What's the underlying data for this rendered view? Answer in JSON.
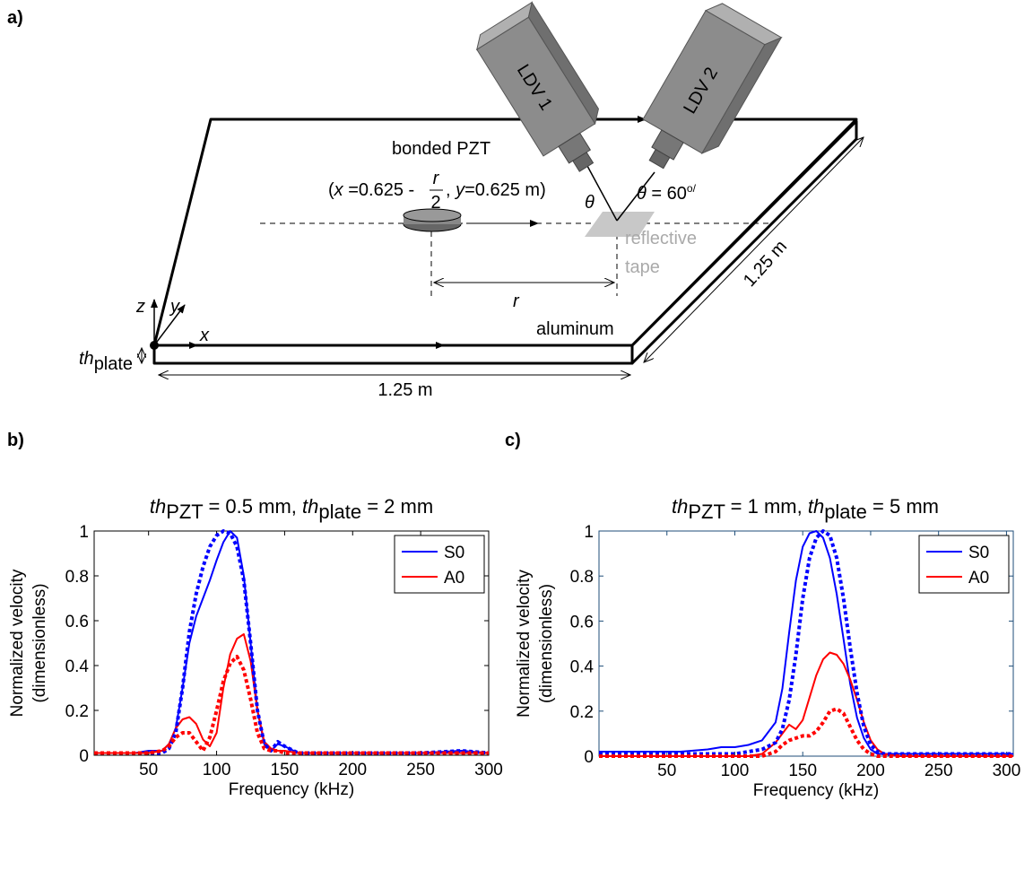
{
  "diagram": {
    "label": "a)",
    "ldv1": "LDV 1",
    "ldv2": "LDV 2",
    "pzt": "bonded PZT",
    "coord": [
      "(",
      "x",
      " =0.625 -",
      "r",
      "2",
      ", ",
      "y",
      "=0.625 m)"
    ],
    "theta_left": "θ",
    "theta_right": [
      "θ",
      " = 60",
      "o/"
    ],
    "tape": [
      "reflective",
      "tape"
    ],
    "width": "1.25 m",
    "depth": "1.25 m",
    "r": "r",
    "material": "aluminum",
    "axes": [
      "z",
      "y",
      "x"
    ],
    "thickness": [
      "th",
      "plate"
    ]
  },
  "chart_data": [
    {
      "type": "line",
      "panel_label": "b)",
      "title": [
        "th",
        "PZT",
        " = 0.5 mm, ",
        "th",
        "plate",
        " = 2 mm"
      ],
      "title_styles": [
        "italic",
        "sub",
        "normal",
        "italic",
        "sub",
        "normal"
      ],
      "xlabel": "Frequency (kHz)",
      "ylabel": [
        "Normalized velocity",
        "(dimensionless)"
      ],
      "x": [
        10,
        20,
        30,
        40,
        50,
        60,
        65,
        70,
        75,
        80,
        85,
        90,
        95,
        100,
        105,
        110,
        115,
        120,
        125,
        130,
        135,
        140,
        145,
        150,
        160,
        180,
        200,
        250,
        280,
        300
      ],
      "series": [
        {
          "name": "S0",
          "color": "#0000ff",
          "dash": false,
          "values": [
            0.01,
            0.01,
            0.01,
            0.01,
            0.02,
            0.02,
            0.05,
            0.12,
            0.3,
            0.5,
            0.62,
            0.7,
            0.78,
            0.87,
            0.95,
            1.0,
            0.97,
            0.8,
            0.5,
            0.2,
            0.05,
            0.02,
            0.05,
            0.04,
            0.01,
            0.01,
            0.01,
            0.01,
            0.02,
            0.01
          ]
        },
        {
          "name": "A0",
          "color": "#ff0000",
          "dash": false,
          "values": [
            0.01,
            0.01,
            0.01,
            0.01,
            0.01,
            0.02,
            0.05,
            0.12,
            0.16,
            0.17,
            0.14,
            0.07,
            0.04,
            0.1,
            0.3,
            0.45,
            0.52,
            0.54,
            0.42,
            0.2,
            0.06,
            0.03,
            0.02,
            0.02,
            0.01,
            0.01,
            0.01,
            0.01,
            0.01,
            0.01
          ]
        },
        {
          "color": "#0000ff",
          "dash": true,
          "values": [
            0.01,
            0.01,
            0.01,
            0.01,
            0.01,
            0.01,
            0.03,
            0.1,
            0.3,
            0.55,
            0.72,
            0.84,
            0.93,
            0.98,
            1.0,
            0.99,
            0.93,
            0.78,
            0.5,
            0.2,
            0.05,
            0.02,
            0.06,
            0.04,
            0.01,
            0.01,
            0.01,
            0.01,
            0.02,
            0.01
          ]
        },
        {
          "color": "#ff0000",
          "dash": true,
          "values": [
            0.01,
            0.01,
            0.01,
            0.01,
            0.01,
            0.02,
            0.04,
            0.08,
            0.1,
            0.1,
            0.06,
            0.02,
            0.08,
            0.2,
            0.33,
            0.41,
            0.44,
            0.38,
            0.25,
            0.1,
            0.03,
            0.02,
            0.02,
            0.01,
            0.01,
            0.01,
            0.01,
            0.01,
            0.01,
            0.01
          ]
        }
      ],
      "xlim": [
        10,
        300
      ],
      "xticks": [
        50,
        100,
        150,
        200,
        250,
        300
      ],
      "ylim": [
        0,
        1
      ],
      "yticks": [
        0,
        0.2,
        0.4,
        0.6,
        0.8,
        1
      ],
      "legend": "upper right",
      "axes_color": "#000000"
    },
    {
      "type": "line",
      "panel_label": "c)",
      "title": [
        "th",
        "PZT",
        " = 1 mm, ",
        "th",
        "plate",
        " = 5 mm"
      ],
      "title_styles": [
        "italic",
        "sub",
        "normal",
        "italic",
        "sub",
        "normal"
      ],
      "xlabel": "Frequency (kHz)",
      "ylabel": [
        "Normalized velocity",
        "(dimensionless)"
      ],
      "x": [
        0,
        20,
        40,
        60,
        80,
        90,
        100,
        110,
        120,
        130,
        135,
        140,
        145,
        150,
        155,
        160,
        165,
        170,
        175,
        180,
        185,
        190,
        195,
        200,
        205,
        210,
        220,
        230,
        250,
        280,
        305
      ],
      "series": [
        {
          "name": "S0",
          "color": "#0000ff",
          "dash": false,
          "values": [
            0.02,
            0.02,
            0.02,
            0.02,
            0.03,
            0.04,
            0.04,
            0.05,
            0.07,
            0.15,
            0.3,
            0.55,
            0.78,
            0.93,
            0.99,
            1.0,
            0.97,
            0.88,
            0.72,
            0.52,
            0.32,
            0.17,
            0.08,
            0.03,
            0.01,
            0.01,
            0.01,
            0.01,
            0.01,
            0.01,
            0.01
          ]
        },
        {
          "name": "A0",
          "color": "#ff0000",
          "dash": false,
          "values": [
            0,
            0,
            0,
            0,
            0,
            0,
            0,
            0,
            0.01,
            0.06,
            0.1,
            0.14,
            0.12,
            0.16,
            0.26,
            0.36,
            0.43,
            0.46,
            0.45,
            0.41,
            0.34,
            0.25,
            0.15,
            0.07,
            0.03,
            0.01,
            0,
            0,
            0,
            0,
            0
          ]
        },
        {
          "color": "#0000ff",
          "dash": true,
          "values": [
            0.01,
            0.01,
            0.01,
            0.01,
            0.01,
            0.01,
            0.01,
            0.02,
            0.03,
            0.06,
            0.12,
            0.25,
            0.45,
            0.7,
            0.88,
            0.97,
            1.0,
            0.98,
            0.88,
            0.7,
            0.48,
            0.28,
            0.13,
            0.05,
            0.02,
            0.01,
            0.01,
            0.01,
            0.01,
            0.01,
            0.01
          ]
        },
        {
          "color": "#ff0000",
          "dash": true,
          "values": [
            0,
            0,
            0,
            0,
            0,
            0,
            0,
            0,
            0,
            0.02,
            0.05,
            0.07,
            0.08,
            0.09,
            0.09,
            0.11,
            0.15,
            0.2,
            0.21,
            0.19,
            0.13,
            0.07,
            0.03,
            0.01,
            0,
            0,
            0,
            0,
            0,
            0,
            0
          ]
        }
      ],
      "xlim": [
        0,
        305
      ],
      "xticks": [
        50,
        100,
        150,
        200,
        250,
        300
      ],
      "ylim": [
        0,
        1
      ],
      "yticks": [
        0,
        0.2,
        0.4,
        0.6,
        0.8,
        1
      ],
      "legend": "upper right",
      "axes_color": "#1f4e79"
    }
  ]
}
